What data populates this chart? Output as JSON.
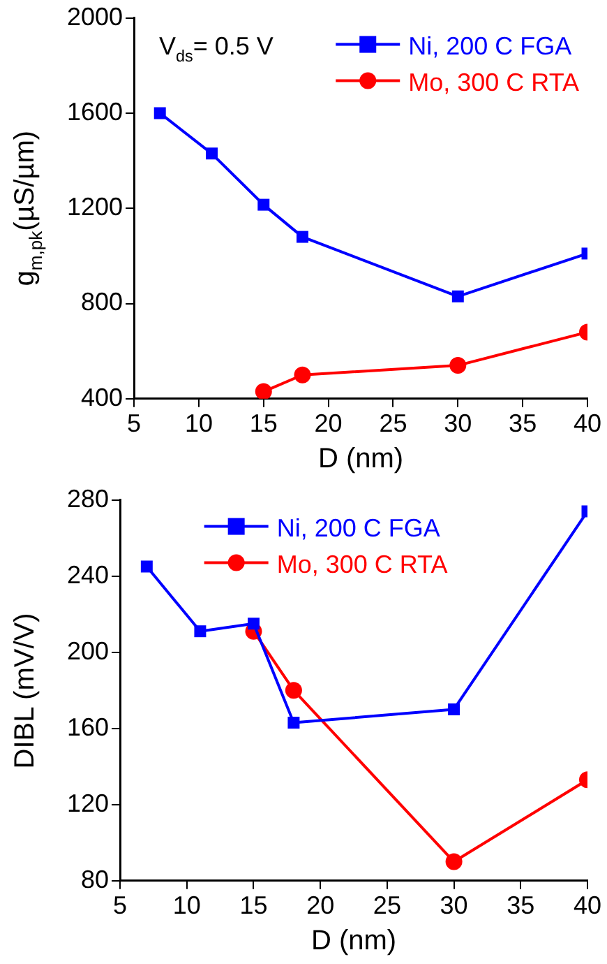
{
  "chart_data": [
    {
      "type": "line",
      "xlabel": "D (nm)",
      "ylabel": "g$_{m,pk}$(µS/µm)",
      "annotations": [
        "V$_{ds}$= 0.5 V"
      ],
      "xlim": [
        5,
        40
      ],
      "xticks": [
        5,
        10,
        15,
        20,
        25,
        30,
        35,
        40
      ],
      "ylim": [
        400,
        2000
      ],
      "yticks": [
        400,
        800,
        1200,
        1600,
        2000
      ],
      "grid": false,
      "legend": "top right",
      "line_style": "solid",
      "series": [
        {
          "name": "Ni, 200 C FGA",
          "color": "#0000ff",
          "marker": "square",
          "x": [
            7,
            11,
            15,
            18,
            30,
            40
          ],
          "values": [
            1600,
            1430,
            1215,
            1080,
            830,
            1010
          ]
        },
        {
          "name": "Mo, 300 C RTA",
          "color": "#ff0000",
          "marker": "circle",
          "x": [
            15,
            18,
            30,
            40
          ],
          "values": [
            430,
            500,
            540,
            680
          ]
        }
      ]
    },
    {
      "type": "line",
      "xlabel": "D (nm)",
      "ylabel": "DIBL (mV/V)",
      "xlim": [
        5,
        40
      ],
      "xticks": [
        5,
        10,
        15,
        20,
        25,
        30,
        35,
        40
      ],
      "ylim": [
        80,
        280
      ],
      "yticks": [
        80,
        120,
        160,
        200,
        240,
        280
      ],
      "grid": false,
      "legend": "top",
      "line_style": "solid",
      "series": [
        {
          "name": "Ni, 200 C FGA",
          "color": "#0000ff",
          "marker": "square",
          "x": [
            7,
            11,
            15,
            18,
            30,
            40
          ],
          "values": [
            245,
            211,
            215,
            163,
            170,
            274
          ]
        },
        {
          "name": "Mo, 300 C RTA",
          "color": "#ff0000",
          "marker": "circle",
          "x": [
            15,
            18,
            30,
            40
          ],
          "values": [
            211,
            180,
            90,
            133
          ]
        }
      ]
    }
  ]
}
